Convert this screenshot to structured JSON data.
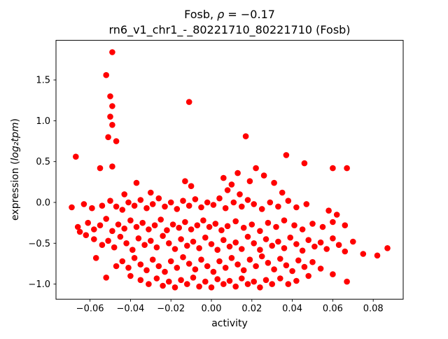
{
  "chart_data": {
    "type": "scatter",
    "title": "Fosb, ρ = −0.17",
    "subtitle": "rn6_v1_chr1_-_80221710_80221710 (Fosb)",
    "title_parts": {
      "prefix": "Fosb, ",
      "rho": "ρ",
      "suffix": " = −0.17"
    },
    "xlabel": "activity",
    "ylabel": "expression (log₂tpm)",
    "ylabel_parts": {
      "prefix": "expression (",
      "math": "log₂tpm",
      "suffix": ")"
    },
    "marker_color": "#ff0000",
    "marker_radius": 4.3,
    "grid": false,
    "legend": "none",
    "xlim": [
      -0.0768,
      0.0948
    ],
    "ylim": [
      -1.185,
      1.985
    ],
    "xticks": {
      "values": [
        -0.06,
        -0.04,
        -0.02,
        0.0,
        0.02,
        0.04,
        0.06,
        0.08
      ],
      "labels": [
        "−0.06",
        "−0.04",
        "−0.02",
        "0.00",
        "0.02",
        "0.04",
        "0.06",
        "0.08"
      ]
    },
    "yticks": {
      "values": [
        -1.0,
        -0.5,
        0.0,
        0.5,
        1.0,
        1.5
      ],
      "labels": [
        "−1.0",
        "−0.5",
        "0.0",
        "0.5",
        "1.0",
        "1.5"
      ]
    },
    "points": [
      [
        -0.049,
        1.84
      ],
      [
        -0.052,
        1.56
      ],
      [
        -0.05,
        1.3
      ],
      [
        -0.049,
        1.18
      ],
      [
        -0.05,
        1.05
      ],
      [
        -0.049,
        0.95
      ],
      [
        -0.051,
        0.8
      ],
      [
        -0.047,
        0.75
      ],
      [
        -0.011,
        1.23
      ],
      [
        0.017,
        0.81
      ],
      [
        -0.067,
        0.56
      ],
      [
        0.037,
        0.58
      ],
      [
        0.046,
        0.48
      ],
      [
        -0.049,
        0.44
      ],
      [
        -0.055,
        0.42
      ],
      [
        0.06,
        0.42
      ],
      [
        0.067,
        0.42
      ],
      [
        0.022,
        0.42
      ],
      [
        0.026,
        0.33
      ],
      [
        0.013,
        0.36
      ],
      [
        0.006,
        0.3
      ],
      [
        0.01,
        0.22
      ],
      [
        0.019,
        0.26
      ],
      [
        0.031,
        0.24
      ],
      [
        -0.013,
        0.26
      ],
      [
        -0.01,
        0.2
      ],
      [
        -0.037,
        0.24
      ],
      [
        -0.03,
        0.12
      ],
      [
        -0.043,
        0.1
      ],
      [
        0.008,
        0.15
      ],
      [
        0.035,
        0.12
      ],
      [
        0.014,
        0.1
      ],
      [
        -0.069,
        -0.06
      ],
      [
        -0.063,
        -0.02
      ],
      [
        -0.059,
        -0.07
      ],
      [
        -0.054,
        -0.04
      ],
      [
        -0.05,
        0.02
      ],
      [
        -0.047,
        -0.05
      ],
      [
        -0.044,
        -0.09
      ],
      [
        -0.041,
        0.0
      ],
      [
        -0.038,
        -0.04
      ],
      [
        -0.035,
        0.03
      ],
      [
        -0.032,
        -0.07
      ],
      [
        -0.029,
        -0.02
      ],
      [
        -0.026,
        0.05
      ],
      [
        -0.023,
        -0.05
      ],
      [
        -0.02,
        0.0
      ],
      [
        -0.017,
        -0.08
      ],
      [
        -0.014,
        0.02
      ],
      [
        -0.011,
        -0.04
      ],
      [
        -0.008,
        0.04
      ],
      [
        -0.005,
        -0.06
      ],
      [
        -0.002,
        0.0
      ],
      [
        0.001,
        -0.03
      ],
      [
        0.004,
        0.05
      ],
      [
        0.007,
        -0.07
      ],
      [
        0.011,
        0.0
      ],
      [
        0.015,
        -0.05
      ],
      [
        0.018,
        0.03
      ],
      [
        0.021,
        -0.02
      ],
      [
        0.025,
        -0.08
      ],
      [
        0.029,
        0.0
      ],
      [
        0.033,
        -0.05
      ],
      [
        0.038,
        0.02
      ],
      [
        0.042,
        -0.06
      ],
      [
        0.047,
        -0.02
      ],
      [
        0.058,
        -0.1
      ],
      [
        -0.066,
        -0.3
      ],
      [
        -0.065,
        -0.36
      ],
      [
        -0.062,
        -0.4
      ],
      [
        -0.061,
        -0.25
      ],
      [
        -0.058,
        -0.33
      ],
      [
        -0.055,
        -0.28
      ],
      [
        -0.052,
        -0.2
      ],
      [
        -0.049,
        -0.35
      ],
      [
        -0.046,
        -0.27
      ],
      [
        -0.043,
        -0.32
      ],
      [
        -0.04,
        -0.22
      ],
      [
        -0.037,
        -0.3
      ],
      [
        -0.034,
        -0.25
      ],
      [
        -0.031,
        -0.33
      ],
      [
        -0.028,
        -0.28
      ],
      [
        -0.025,
        -0.21
      ],
      [
        -0.022,
        -0.34
      ],
      [
        -0.019,
        -0.27
      ],
      [
        -0.016,
        -0.31
      ],
      [
        -0.013,
        -0.24
      ],
      [
        -0.01,
        -0.33
      ],
      [
        -0.007,
        -0.28
      ],
      [
        -0.004,
        -0.22
      ],
      [
        -0.001,
        -0.3
      ],
      [
        0.002,
        -0.26
      ],
      [
        0.005,
        -0.34
      ],
      [
        0.008,
        -0.29
      ],
      [
        0.012,
        -0.23
      ],
      [
        0.016,
        -0.31
      ],
      [
        0.02,
        -0.27
      ],
      [
        0.024,
        -0.35
      ],
      [
        0.028,
        -0.25
      ],
      [
        0.032,
        -0.3
      ],
      [
        0.036,
        -0.22
      ],
      [
        0.041,
        -0.28
      ],
      [
        0.045,
        -0.33
      ],
      [
        0.05,
        -0.26
      ],
      [
        0.055,
        -0.3
      ],
      [
        0.06,
        -0.24
      ],
      [
        0.062,
        -0.15
      ],
      [
        0.066,
        -0.28
      ],
      [
        -0.058,
        -0.45
      ],
      [
        -0.054,
        -0.52
      ],
      [
        -0.051,
        -0.47
      ],
      [
        -0.048,
        -0.55
      ],
      [
        -0.045,
        -0.42
      ],
      [
        -0.042,
        -0.5
      ],
      [
        -0.039,
        -0.58
      ],
      [
        -0.036,
        -0.44
      ],
      [
        -0.033,
        -0.52
      ],
      [
        -0.03,
        -0.47
      ],
      [
        -0.027,
        -0.55
      ],
      [
        -0.024,
        -0.41
      ],
      [
        -0.021,
        -0.5
      ],
      [
        -0.018,
        -0.57
      ],
      [
        -0.015,
        -0.45
      ],
      [
        -0.012,
        -0.53
      ],
      [
        -0.009,
        -0.48
      ],
      [
        -0.006,
        -0.56
      ],
      [
        -0.003,
        -0.43
      ],
      [
        0.0,
        -0.51
      ],
      [
        0.003,
        -0.58
      ],
      [
        0.006,
        -0.46
      ],
      [
        0.009,
        -0.54
      ],
      [
        0.012,
        -0.49
      ],
      [
        0.015,
        -0.57
      ],
      [
        0.018,
        -0.42
      ],
      [
        0.021,
        -0.5
      ],
      [
        0.024,
        -0.58
      ],
      [
        0.027,
        -0.45
      ],
      [
        0.03,
        -0.53
      ],
      [
        0.033,
        -0.48
      ],
      [
        0.036,
        -0.56
      ],
      [
        0.039,
        -0.43
      ],
      [
        0.042,
        -0.51
      ],
      [
        0.045,
        -0.59
      ],
      [
        0.048,
        -0.46
      ],
      [
        0.051,
        -0.54
      ],
      [
        0.054,
        -0.49
      ],
      [
        0.057,
        -0.57
      ],
      [
        0.06,
        -0.44
      ],
      [
        0.063,
        -0.52
      ],
      [
        0.066,
        -0.6
      ],
      [
        0.07,
        -0.48
      ],
      [
        0.075,
        -0.63
      ],
      [
        0.082,
        -0.65
      ],
      [
        0.087,
        -0.56
      ],
      [
        -0.057,
        -0.68
      ],
      [
        -0.047,
        -0.78
      ],
      [
        -0.044,
        -0.72
      ],
      [
        -0.041,
        -0.8
      ],
      [
        -0.038,
        -0.68
      ],
      [
        -0.035,
        -0.76
      ],
      [
        -0.032,
        -0.83
      ],
      [
        -0.029,
        -0.7
      ],
      [
        -0.026,
        -0.78
      ],
      [
        -0.023,
        -0.85
      ],
      [
        -0.02,
        -0.72
      ],
      [
        -0.017,
        -0.8
      ],
      [
        -0.014,
        -0.67
      ],
      [
        -0.011,
        -0.75
      ],
      [
        -0.008,
        -0.82
      ],
      [
        -0.005,
        -0.7
      ],
      [
        -0.002,
        -0.78
      ],
      [
        0.001,
        -0.85
      ],
      [
        0.004,
        -0.72
      ],
      [
        0.007,
        -0.8
      ],
      [
        0.01,
        -0.68
      ],
      [
        0.013,
        -0.76
      ],
      [
        0.016,
        -0.83
      ],
      [
        0.019,
        -0.7
      ],
      [
        0.022,
        -0.78
      ],
      [
        0.025,
        -0.66
      ],
      [
        0.028,
        -0.74
      ],
      [
        0.031,
        -0.82
      ],
      [
        0.034,
        -0.69
      ],
      [
        0.037,
        -0.77
      ],
      [
        0.04,
        -0.84
      ],
      [
        0.043,
        -0.71
      ],
      [
        0.046,
        -0.79
      ],
      [
        0.05,
        -0.73
      ],
      [
        0.054,
        -0.81
      ],
      [
        -0.052,
        -0.92
      ],
      [
        -0.04,
        -0.9
      ],
      [
        -0.035,
        -0.95
      ],
      [
        -0.031,
        -1.0
      ],
      [
        -0.027,
        -0.93
      ],
      [
        -0.024,
        -1.02
      ],
      [
        -0.021,
        -0.97
      ],
      [
        -0.018,
        -1.04
      ],
      [
        -0.015,
        -0.95
      ],
      [
        -0.012,
        -1.0
      ],
      [
        -0.009,
        -0.92
      ],
      [
        -0.006,
        -1.03
      ],
      [
        -0.003,
        -0.97
      ],
      [
        0.0,
        -1.04
      ],
      [
        0.003,
        -0.94
      ],
      [
        0.006,
        -1.0
      ],
      [
        0.009,
        -0.96
      ],
      [
        0.012,
        -1.03
      ],
      [
        0.015,
        -0.93
      ],
      [
        0.018,
        -1.0
      ],
      [
        0.021,
        -0.97
      ],
      [
        0.024,
        -1.04
      ],
      [
        0.027,
        -0.95
      ],
      [
        0.03,
        -1.0
      ],
      [
        0.034,
        -0.93
      ],
      [
        0.038,
        -1.0
      ],
      [
        0.042,
        -0.96
      ],
      [
        0.048,
        -0.9
      ],
      [
        0.06,
        -0.88
      ],
      [
        0.067,
        -0.97
      ]
    ]
  }
}
